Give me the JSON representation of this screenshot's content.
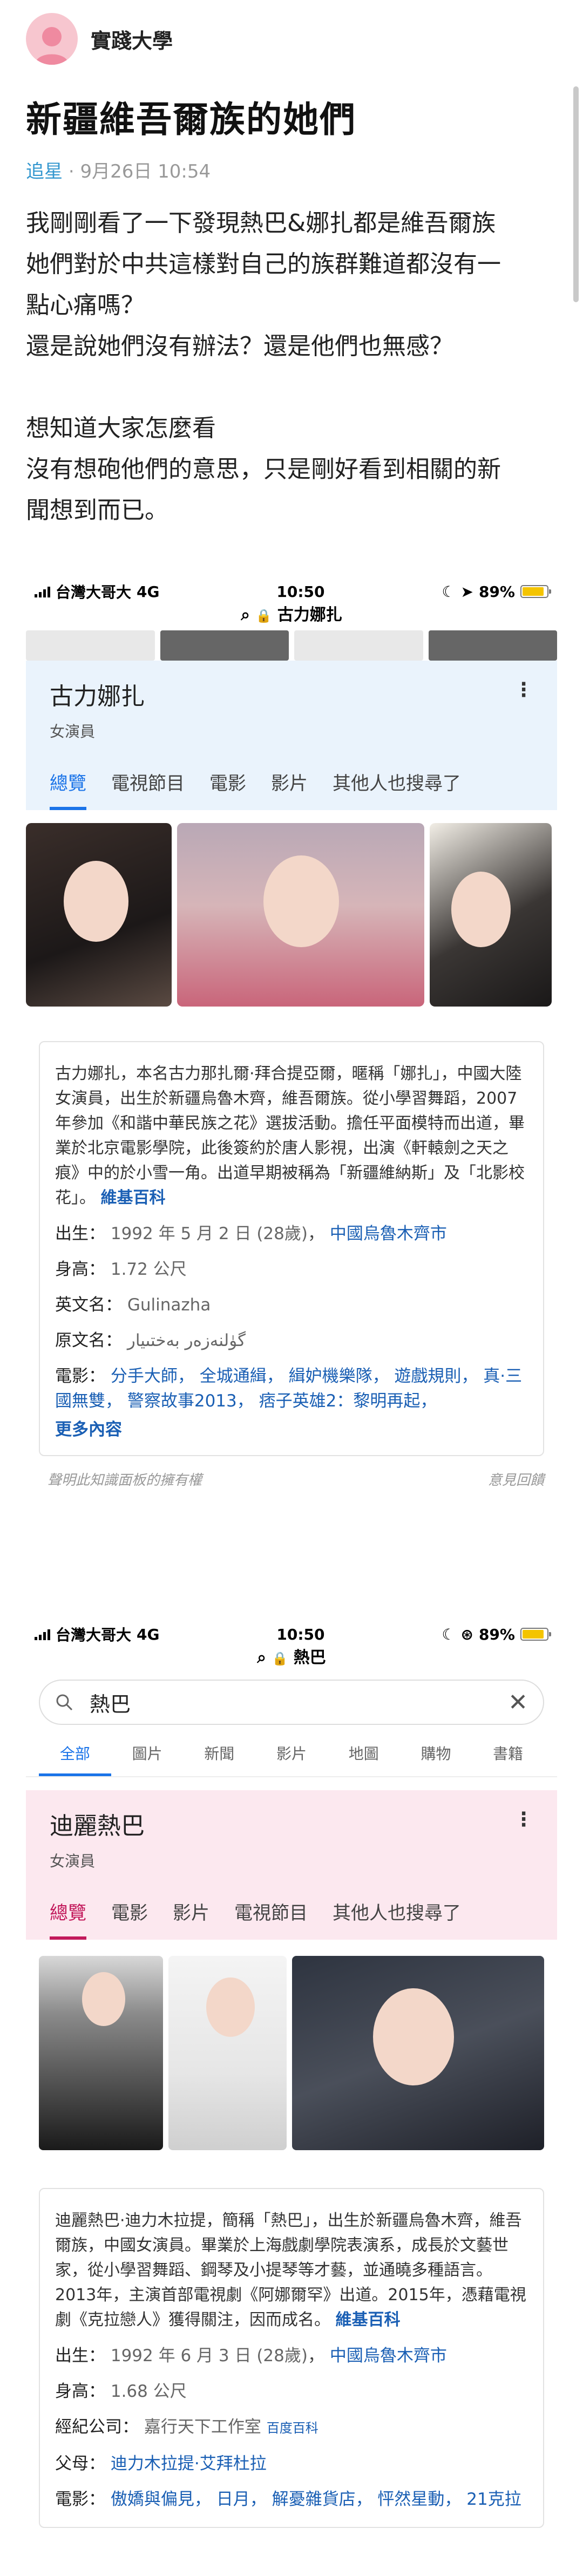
{
  "post": {
    "forum": "實踐大學",
    "title": "新疆維吾爾族的她們",
    "author": "追星",
    "separator": "·",
    "date": "9月26日 10:54",
    "body": [
      "我剛剛看了一下發現熱巴&娜扎都是維吾爾族",
      "她們對於中共這樣對自己的族群難道都沒有一",
      "點心痛嗎？",
      "還是說她們沒有辦法？還是他們也無感？",
      "",
      "想知道大家怎麼看",
      "沒有想砲他們的意思，只是剛好看到相關的新",
      "聞想到而已。"
    ]
  },
  "screenshot1": {
    "carrier": "台灣大哥大",
    "network": "4G",
    "time": "10:50",
    "battery": "89%",
    "battery_level": 0.89,
    "url": "古力娜扎",
    "name": "古力娜扎",
    "subtitle": "女演員",
    "tabs": [
      "總覽",
      "電視節目",
      "電影",
      "影片",
      "其他人也搜尋了"
    ],
    "description": "古力娜扎，本名古力那扎爾·拜合提亞爾，暱稱「娜扎」，中國大陸女演員，出生於新疆烏魯木齊，維吾爾族。從小學習舞蹈，2007年參加《和諧中華民族之花》選拔活動。擔任平面模特而出道，畢業於北京電影學院，此後簽約於唐人影視，出演《軒轅劍之天之痕》中的於小雪一角。出道早期被稱為「新疆維納斯」及「北影校花」。",
    "wiki_link": "維基百科",
    "birth_label": "出生：",
    "birth_value": "1992 年 5 月 2 日 (28歲)",
    "birth_place": "中國烏魯木齊市",
    "height_label": "身高：",
    "height_value": "1.72 公尺",
    "english_label": "英文名：",
    "english_value": "Gulinazha",
    "original_label": "原文名：",
    "original_value": "گۈلنەزەر بەختىيار",
    "films_label": "電影：",
    "films": "分手大師， 全城通緝， 緝妒機樂隊， 遊戲規則， 真·三國無雙， 警察故事2013， 痞子英雄2：黎明再起，",
    "more": "更多內容",
    "note_left": "聲明此知識面板的擁有權",
    "note_right": "意見回饋"
  },
  "screenshot2": {
    "carrier": "台灣大哥大",
    "network": "4G",
    "time": "10:50",
    "battery": "89%",
    "battery_level": 0.89,
    "url": "熱巴",
    "query": "熱巴",
    "search_tabs": [
      "全部",
      "圖片",
      "新聞",
      "影片",
      "地圖",
      "購物",
      "書籍"
    ],
    "name": "迪麗熱巴",
    "subtitle": "女演員",
    "tabs": [
      "總覽",
      "電影",
      "影片",
      "電視節目",
      "其他人也搜尋了"
    ],
    "description": "迪麗熱巴·迪力木拉提，簡稱「熱巴」，出生於新疆烏魯木齊，維吾爾族，中國女演員。畢業於上海戲劇學院表演系，成長於文藝世家，從小學習舞蹈、鋼琴及小提琴等才藝，並通曉多種語言。2013年，主演首部電視劇《阿娜爾罕》出道。2015年，憑藉電視劇《克拉戀人》獲得關注，因而成名。",
    "wiki_link": "維基百科",
    "birth_label": "出生：",
    "birth_value": "1992 年 6 月 3 日 (28歲)",
    "birth_place": "中國烏魯木齊市",
    "height_label": "身高：",
    "height_value": "1.68 公尺",
    "company_label": "經紀公司：",
    "company_value": "嘉行天下工作室",
    "company_source": "百度百科",
    "parents_label": "父母：",
    "parents_value": "迪力木拉提·艾拜杜拉",
    "films_label": "電影：",
    "films": "傲嬌與偏見， 日月， 解憂雜貨店， 怦然星動， 21克拉"
  }
}
